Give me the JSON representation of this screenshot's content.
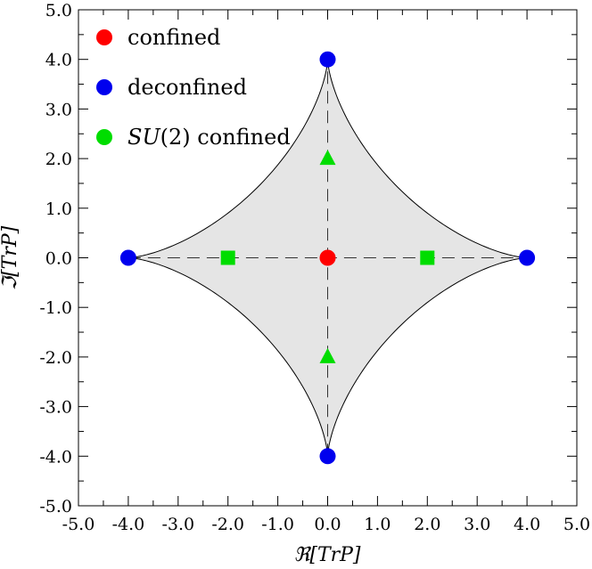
{
  "chart_data": {
    "type": "scatter",
    "title": "",
    "xlabel": "ℜ[TrP]",
    "ylabel": "ℑ[TrP]",
    "xlim": [
      -5.0,
      5.0
    ],
    "ylim": [
      -5.0,
      5.0
    ],
    "x_ticks": [
      "-5.0",
      "-4.0",
      "-3.0",
      "-2.0",
      "-1.0",
      "0.0",
      "1.0",
      "2.0",
      "3.0",
      "4.0",
      "5.0"
    ],
    "y_ticks": [
      "-5.0",
      "-4.0",
      "-3.0",
      "-2.0",
      "-1.0",
      "0.0",
      "1.0",
      "2.0",
      "3.0",
      "4.0",
      "5.0"
    ],
    "grid": false,
    "legend_position": "top-left",
    "region": {
      "name": "allowed-region",
      "shape": "hypocycloid",
      "cusps": [
        [
          4,
          0
        ],
        [
          0,
          4
        ],
        [
          -4,
          0
        ],
        [
          0,
          -4
        ]
      ],
      "fill": "#e5e5e5",
      "stroke": "#000000"
    },
    "dashed_lines": [
      {
        "name": "horizontal-dashed-axis",
        "points": [
          [
            -4,
            0
          ],
          [
            4,
            0
          ]
        ]
      },
      {
        "name": "vertical-dashed-axis",
        "points": [
          [
            0,
            -4
          ],
          [
            0,
            4
          ]
        ]
      }
    ],
    "series": [
      {
        "name": "confined",
        "label": "confined",
        "marker": "circle",
        "color": "#ff0000",
        "points": [
          [
            0,
            0
          ]
        ]
      },
      {
        "name": "deconfined",
        "label": "deconfined",
        "marker": "circle",
        "color": "#0000ee",
        "points": [
          [
            4,
            0
          ],
          [
            0,
            4
          ],
          [
            -4,
            0
          ],
          [
            0,
            -4
          ]
        ]
      },
      {
        "name": "su2-confined-triangles",
        "label": "SU(2) confined",
        "marker": "triangle",
        "color": "#00dd00",
        "points": [
          [
            0,
            2
          ],
          [
            0,
            -2
          ]
        ]
      },
      {
        "name": "su2-confined-squares",
        "label": "",
        "marker": "square",
        "color": "#00dd00",
        "points": [
          [
            -2,
            0
          ],
          [
            2,
            0
          ]
        ]
      }
    ],
    "legend": [
      {
        "label_prefix": "",
        "label_italic": "",
        "label_suffix": "confined",
        "marker": "circle",
        "color": "#ff0000"
      },
      {
        "label_prefix": "",
        "label_italic": "",
        "label_suffix": "deconfined",
        "marker": "circle",
        "color": "#0000ee"
      },
      {
        "label_prefix": "",
        "label_italic": "SU",
        "label_suffix": "(2) confined",
        "marker": "circle",
        "color": "#00dd00"
      }
    ]
  }
}
